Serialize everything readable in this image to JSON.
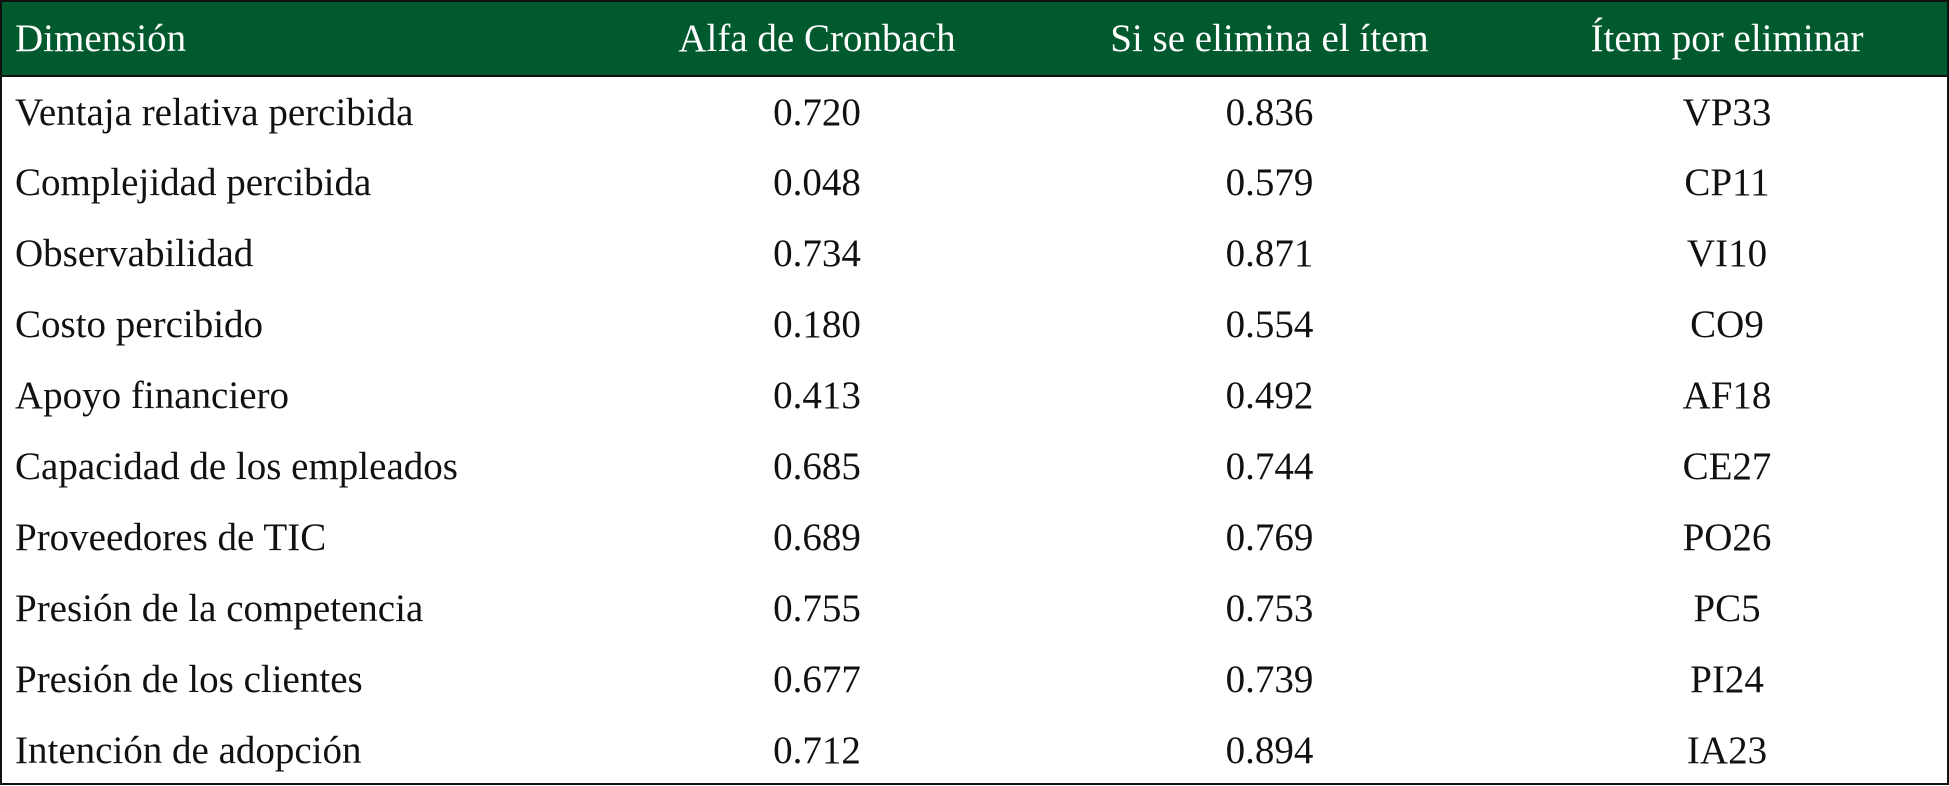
{
  "table": {
    "headers": [
      "Dimensión",
      "Alfa de Cronbach",
      "Si se elimina el ítem",
      "Ítem por eliminar"
    ],
    "rows": [
      [
        "Ventaja relativa percibida",
        "0.720",
        "0.836",
        "VP33"
      ],
      [
        "Complejidad percibida",
        "0.048",
        "0.579",
        "CP11"
      ],
      [
        "Observabilidad",
        "0.734",
        "0.871",
        "VI10"
      ],
      [
        "Costo percibido",
        "0.180",
        "0.554",
        "CO9"
      ],
      [
        "Apoyo financiero",
        "0.413",
        "0.492",
        "AF18"
      ],
      [
        "Capacidad de los empleados",
        "0.685",
        "0.744",
        "CE27"
      ],
      [
        "Proveedores de TIC",
        "0.689",
        "0.769",
        "PO26"
      ],
      [
        "Presión de la competencia",
        "0.755",
        "0.753",
        "PC5"
      ],
      [
        "Presión de los clientes",
        "0.677",
        "0.739",
        "PI24"
      ],
      [
        "Intención de adopción",
        "0.712",
        "0.894",
        "IA23"
      ]
    ]
  },
  "colors": {
    "header_bg": "#015a2e",
    "header_text": "#ffffff",
    "body_text": "#111111",
    "border": "#111111"
  }
}
